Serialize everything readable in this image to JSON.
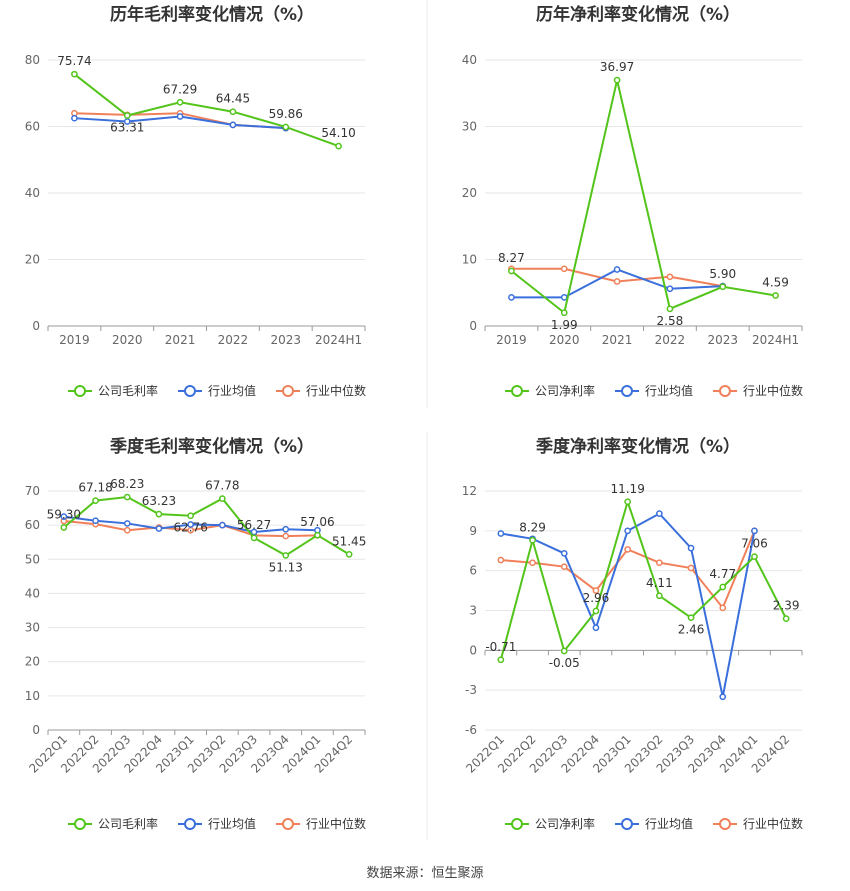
{
  "colors": {
    "company": "#52c41a",
    "industry_avg": "#3a6fdc",
    "industry_median": "#f0805a",
    "grid": "#e6e6e6",
    "axis_text": "#666666",
    "title_text": "#333333"
  },
  "footer": {
    "source": "数据来源：恒生聚源"
  },
  "chart_data": [
    {
      "type": "line",
      "title": "历年毛利率变化情况（%）",
      "categories": [
        "2019",
        "2020",
        "2021",
        "2022",
        "2023",
        "2024H1"
      ],
      "ylim": [
        0,
        80
      ],
      "yticks": [
        0,
        20,
        40,
        60,
        80
      ],
      "grid": true,
      "legend_position": "bottom",
      "series": [
        {
          "name": "公司毛利率",
          "values": [
            75.74,
            63.31,
            67.29,
            64.45,
            59.86,
            54.1
          ],
          "labels": [
            "75.74",
            "63.31",
            "67.29",
            "64.45",
            "59.86",
            "54.10"
          ]
        },
        {
          "name": "行业均值",
          "values": [
            62.5,
            61.5,
            63.0,
            60.5,
            59.5,
            null
          ]
        },
        {
          "name": "行业中位数",
          "values": [
            64.0,
            63.5,
            64.0,
            60.5,
            59.5,
            null
          ]
        }
      ]
    },
    {
      "type": "line",
      "title": "历年净利率变化情况（%）",
      "categories": [
        "2019",
        "2020",
        "2021",
        "2022",
        "2023",
        "2024H1"
      ],
      "ylim": [
        0,
        40
      ],
      "yticks": [
        0,
        10,
        20,
        30,
        40
      ],
      "grid": true,
      "legend_position": "bottom",
      "series": [
        {
          "name": "公司净利率",
          "values": [
            8.27,
            1.99,
            36.97,
            2.58,
            5.9,
            4.59
          ],
          "labels": [
            "8.27",
            "1.99",
            "36.97",
            "2.58",
            "5.90",
            "4.59"
          ]
        },
        {
          "name": "行业均值",
          "values": [
            4.3,
            4.3,
            8.5,
            5.6,
            6.0,
            null
          ]
        },
        {
          "name": "行业中位数",
          "values": [
            8.6,
            8.6,
            6.7,
            7.4,
            6.0,
            null
          ]
        }
      ]
    },
    {
      "type": "line",
      "title": "季度毛利率变化情况（%）",
      "categories": [
        "2022Q1",
        "2022Q2",
        "2022Q3",
        "2022Q4",
        "2023Q1",
        "2023Q2",
        "2023Q3",
        "2023Q4",
        "2024Q1",
        "2024Q2"
      ],
      "ylim": [
        0,
        70
      ],
      "yticks": [
        0,
        10,
        20,
        30,
        40,
        50,
        60,
        70
      ],
      "grid": true,
      "legend_position": "bottom",
      "series": [
        {
          "name": "公司毛利率",
          "values": [
            59.3,
            67.18,
            68.23,
            63.23,
            62.76,
            67.78,
            56.27,
            51.13,
            57.06,
            51.45
          ],
          "labels": [
            "59.30",
            "67.18",
            "68.23",
            "63.23",
            "62.76",
            "67.78",
            "56.27",
            "51.13",
            "57.06",
            "51.45"
          ]
        },
        {
          "name": "行业均值",
          "values": [
            62.5,
            61.3,
            60.5,
            59.0,
            60.2,
            60.0,
            58.0,
            58.8,
            58.5,
            null
          ]
        },
        {
          "name": "行业中位数",
          "values": [
            61.2,
            60.3,
            58.5,
            59.3,
            58.5,
            60.0,
            57.0,
            56.8,
            57.0,
            null
          ]
        }
      ]
    },
    {
      "type": "line",
      "title": "季度净利率变化情况（%）",
      "categories": [
        "2022Q1",
        "2022Q2",
        "2022Q3",
        "2022Q4",
        "2023Q1",
        "2023Q2",
        "2023Q3",
        "2023Q4",
        "2024Q1",
        "2024Q2"
      ],
      "ylim": [
        -6,
        12
      ],
      "yticks": [
        -6,
        -3,
        0,
        3,
        6,
        9,
        12
      ],
      "grid": true,
      "legend_position": "bottom",
      "series": [
        {
          "name": "公司净利率",
          "values": [
            -0.71,
            8.29,
            -0.05,
            2.96,
            11.19,
            4.11,
            2.46,
            4.77,
            7.06,
            2.39
          ],
          "labels": [
            "-0.71",
            "8.29",
            "-0.05",
            "2.96",
            "11.19",
            "4.11",
            "2.46",
            "4.77",
            "7.06",
            "2.39"
          ]
        },
        {
          "name": "行业均值",
          "values": [
            8.8,
            8.4,
            7.3,
            1.7,
            9.0,
            10.3,
            7.7,
            -3.5,
            9.0,
            null
          ]
        },
        {
          "name": "行业中位数",
          "values": [
            6.8,
            6.6,
            6.3,
            4.5,
            7.6,
            6.6,
            6.2,
            3.2,
            9.0,
            null
          ]
        }
      ]
    }
  ]
}
